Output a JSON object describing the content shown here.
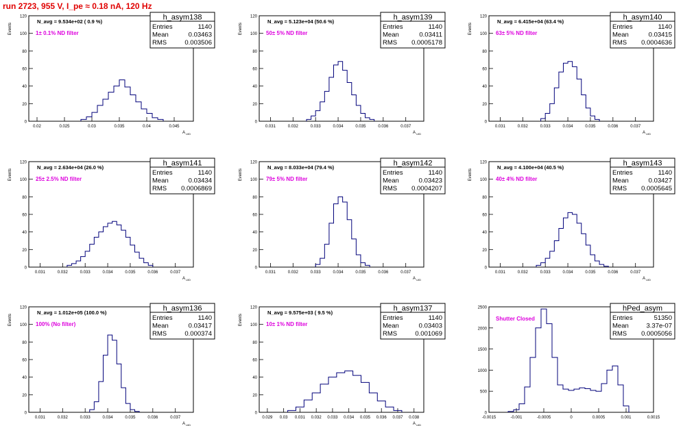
{
  "title": "run 2723,   955 V, I_pe ≈ 0.18 nA, 120 Hz",
  "colors": {
    "histogram": "#00007a",
    "annotation": "#dd00dd",
    "title": "#e00000"
  },
  "chart_data": [
    {
      "type": "histogram",
      "name": "h_asym138",
      "nlabel": "N_avg = 9.534e+02 ( 0.9 %)",
      "filter": "1± 0.1% ND filter",
      "stats": {
        "entries": "1140",
        "mean": "0.03463",
        "rms": "0.003506"
      },
      "xlim": [
        0.0185,
        0.0485
      ],
      "ylim": [
        0,
        120
      ],
      "xlabel": "A_UID",
      "ylabel": "Events",
      "xticks": [
        "0.02",
        "0.025",
        "0.03",
        "0.035",
        "0.04",
        "0.045"
      ],
      "xtick_values": [
        0.02,
        0.025,
        0.03,
        0.035,
        0.04,
        0.045
      ],
      "yticks": [
        "0",
        "20",
        "40",
        "60",
        "80",
        "100",
        "120"
      ],
      "x": [
        0.0285,
        0.0295,
        0.0305,
        0.0315,
        0.0325,
        0.0335,
        0.0345,
        0.0355,
        0.0365,
        0.0375,
        0.0385,
        0.0395,
        0.0405,
        0.0415,
        0.0425
      ],
      "values": [
        2,
        5,
        10,
        18,
        25,
        33,
        40,
        47,
        39,
        30,
        22,
        14,
        9,
        4,
        2
      ]
    },
    {
      "type": "histogram",
      "name": "h_asym139",
      "nlabel": "N_avg = 5.123e+04 (50.6 %)",
      "filter": "50± 5% ND filter",
      "stats": {
        "entries": "1140",
        "mean": "0.03411",
        "rms": "0.0005178"
      },
      "xlim": [
        0.0305,
        0.0378
      ],
      "ylim": [
        0,
        120
      ],
      "xlabel": "A_UID",
      "ylabel": "Events",
      "xticks": [
        "0.031",
        "0.032",
        "0.033",
        "0.034",
        "0.035",
        "0.036",
        "0.037"
      ],
      "xtick_values": [
        0.031,
        0.032,
        0.033,
        0.034,
        0.035,
        0.036,
        0.037
      ],
      "yticks": [
        "0",
        "20",
        "40",
        "60",
        "80",
        "100",
        "120"
      ],
      "x": [
        0.0327,
        0.0329,
        0.0331,
        0.0333,
        0.0335,
        0.0337,
        0.0339,
        0.0341,
        0.0343,
        0.0345,
        0.0347,
        0.0349,
        0.0351,
        0.0353,
        0.0355
      ],
      "values": [
        2,
        6,
        12,
        22,
        34,
        50,
        64,
        68,
        58,
        44,
        30,
        18,
        9,
        4,
        2
      ]
    },
    {
      "type": "histogram",
      "name": "h_asym140",
      "nlabel": "N_avg = 6.415e+04 (63.4 %)",
      "filter": "63± 5% ND filter",
      "stats": {
        "entries": "1140",
        "mean": "0.03415",
        "rms": "0.0004636"
      },
      "xlim": [
        0.0305,
        0.0378
      ],
      "ylim": [
        0,
        120
      ],
      "xlabel": "A_UID",
      "ylabel": "Events",
      "xticks": [
        "0.031",
        "0.032",
        "0.033",
        "0.034",
        "0.035",
        "0.036",
        "0.037"
      ],
      "xtick_values": [
        0.031,
        0.032,
        0.033,
        0.034,
        0.035,
        0.036,
        0.037
      ],
      "yticks": [
        "0",
        "20",
        "40",
        "60",
        "80",
        "100",
        "120"
      ],
      "x": [
        0.0329,
        0.0331,
        0.0333,
        0.0335,
        0.0337,
        0.0339,
        0.0341,
        0.0343,
        0.0345,
        0.0347,
        0.0349,
        0.0351,
        0.0353
      ],
      "values": [
        3,
        9,
        20,
        38,
        56,
        66,
        68,
        62,
        48,
        30,
        15,
        6,
        2
      ]
    },
    {
      "type": "histogram",
      "name": "h_asym141",
      "nlabel": "N_avg = 2.634e+04 (26.0 %)",
      "filter": "25± 2.5% ND filter",
      "stats": {
        "entries": "1140",
        "mean": "0.03434",
        "rms": "0.0006869"
      },
      "xlim": [
        0.0305,
        0.0378
      ],
      "ylim": [
        0,
        120
      ],
      "xlabel": "A_UID",
      "ylabel": "Events",
      "xticks": [
        "0.031",
        "0.032",
        "0.033",
        "0.034",
        "0.035",
        "0.036",
        "0.037"
      ],
      "xtick_values": [
        0.031,
        0.032,
        0.033,
        0.034,
        0.035,
        0.036,
        0.037
      ],
      "yticks": [
        "0",
        "20",
        "40",
        "60",
        "80",
        "100",
        "120"
      ],
      "x": [
        0.0323,
        0.0325,
        0.0327,
        0.0329,
        0.0331,
        0.0333,
        0.0335,
        0.0337,
        0.0339,
        0.0341,
        0.0343,
        0.0345,
        0.0347,
        0.0349,
        0.0351,
        0.0353,
        0.0355,
        0.0357,
        0.0359
      ],
      "values": [
        2,
        4,
        7,
        12,
        18,
        26,
        34,
        40,
        46,
        50,
        52,
        48,
        42,
        34,
        25,
        17,
        10,
        5,
        2
      ]
    },
    {
      "type": "histogram",
      "name": "h_asym142",
      "nlabel": "N_avg = 8.033e+04 (79.4 %)",
      "filter": "79± 5% ND filter",
      "stats": {
        "entries": "1140",
        "mean": "0.03423",
        "rms": "0.0004207"
      },
      "xlim": [
        0.0305,
        0.0378
      ],
      "ylim": [
        0,
        120
      ],
      "xlabel": "A_UID",
      "ylabel": "Events",
      "xticks": [
        "0.031",
        "0.032",
        "0.033",
        "0.034",
        "0.035",
        "0.036",
        "0.037"
      ],
      "xtick_values": [
        0.031,
        0.032,
        0.033,
        0.034,
        0.035,
        0.036,
        0.037
      ],
      "yticks": [
        "0",
        "20",
        "40",
        "60",
        "80",
        "100",
        "120"
      ],
      "x": [
        0.0331,
        0.0333,
        0.0335,
        0.0337,
        0.0339,
        0.0341,
        0.0343,
        0.0345,
        0.0347,
        0.0349,
        0.0351,
        0.0353
      ],
      "values": [
        3,
        10,
        26,
        50,
        72,
        80,
        74,
        54,
        32,
        14,
        5,
        2
      ]
    },
    {
      "type": "histogram",
      "name": "h_asym143",
      "nlabel": "N_avg = 4.100e+04 (40.5 %)",
      "filter": "40± 4% ND filter",
      "stats": {
        "entries": "1140",
        "mean": "0.03427",
        "rms": "0.0005645"
      },
      "xlim": [
        0.0305,
        0.0378
      ],
      "ylim": [
        0,
        120
      ],
      "xlabel": "A_UID",
      "ylabel": "Events",
      "xticks": [
        "0.031",
        "0.032",
        "0.033",
        "0.034",
        "0.035",
        "0.036",
        "0.037"
      ],
      "xtick_values": [
        0.031,
        0.032,
        0.033,
        0.034,
        0.035,
        0.036,
        0.037
      ],
      "yticks": [
        "0",
        "20",
        "40",
        "60",
        "80",
        "100",
        "120"
      ],
      "x": [
        0.0327,
        0.0329,
        0.0331,
        0.0333,
        0.0335,
        0.0337,
        0.0339,
        0.0341,
        0.0343,
        0.0345,
        0.0347,
        0.0349,
        0.0351,
        0.0353,
        0.0355,
        0.0357
      ],
      "values": [
        2,
        5,
        10,
        18,
        30,
        44,
        56,
        62,
        60,
        50,
        38,
        25,
        14,
        7,
        3,
        1
      ]
    },
    {
      "type": "histogram",
      "name": "h_asym136",
      "nlabel": "N_avg = 1.012e+05 (100.0 %)",
      "filter": "100% (No filter)",
      "stats": {
        "entries": "1140",
        "mean": "0.03417",
        "rms": "0.000374"
      },
      "xlim": [
        0.0305,
        0.0378
      ],
      "ylim": [
        0,
        120
      ],
      "xlabel": "A_UID",
      "ylabel": "Events",
      "xticks": [
        "0.031",
        "0.032",
        "0.033",
        "0.034",
        "0.035",
        "0.036",
        "0.037"
      ],
      "xtick_values": [
        0.031,
        0.032,
        0.033,
        0.034,
        0.035,
        0.036,
        0.037
      ],
      "yticks": [
        "0",
        "20",
        "40",
        "60",
        "80",
        "100",
        "120"
      ],
      "x": [
        0.0333,
        0.0335,
        0.0337,
        0.0339,
        0.0341,
        0.0343,
        0.0345,
        0.0347,
        0.0349,
        0.0351,
        0.0353
      ],
      "values": [
        3,
        12,
        35,
        65,
        88,
        82,
        55,
        28,
        10,
        3,
        1
      ]
    },
    {
      "type": "histogram",
      "name": "h_asym137",
      "nlabel": "N_avg = 9.575e+03 ( 9.5 %)",
      "filter": "10± 1% ND filter",
      "stats": {
        "entries": "1140",
        "mean": "0.03403",
        "rms": "0.001069"
      },
      "xlim": [
        0.0285,
        0.0386
      ],
      "ylim": [
        0,
        120
      ],
      "xlabel": "A_UID",
      "ylabel": "Events",
      "xticks": [
        "0.029",
        "0.03",
        "0.031",
        "0.032",
        "0.033",
        "0.034",
        "0.035",
        "0.036",
        "0.037",
        "0.038"
      ],
      "xtick_values": [
        0.029,
        0.03,
        0.031,
        0.032,
        0.033,
        0.034,
        0.035,
        0.036,
        0.037,
        0.038
      ],
      "yticks": [
        "0",
        "20",
        "40",
        "60",
        "80",
        "100",
        "120"
      ],
      "x": [
        0.0305,
        0.031,
        0.0315,
        0.032,
        0.0325,
        0.033,
        0.0335,
        0.034,
        0.0345,
        0.035,
        0.0355,
        0.036,
        0.0365,
        0.037
      ],
      "values": [
        2,
        6,
        14,
        22,
        32,
        40,
        45,
        47,
        42,
        34,
        22,
        13,
        6,
        2
      ]
    },
    {
      "type": "histogram",
      "name": "hPed_asym",
      "nlabel": "",
      "filter": "Shutter Closed",
      "stats": {
        "entries": "51350",
        "mean": "3.37e-07",
        "rms": "0.0005056"
      },
      "xlim": [
        -0.0015,
        0.0015
      ],
      "ylim": [
        0,
        2500
      ],
      "xlabel": "",
      "ylabel": "",
      "xticks": [
        "-0.0015",
        "-0.001",
        "-0.0005",
        "0",
        "0.0005",
        "0.001",
        "0.0015"
      ],
      "xtick_values": [
        -0.0015,
        -0.001,
        -0.0005,
        0,
        0.0005,
        0.001,
        0.0015
      ],
      "yticks": [
        "0",
        "500",
        "1000",
        "1500",
        "2000",
        "2500"
      ],
      "x": [
        -0.0011,
        -0.001,
        -0.0009,
        -0.0008,
        -0.0007,
        -0.0006,
        -0.0005,
        -0.0004,
        -0.0003,
        -0.0002,
        -0.0001,
        0,
        0.0001,
        0.0002,
        0.0003,
        0.0004,
        0.0005,
        0.0006,
        0.0007,
        0.0008,
        0.0009,
        0.001
      ],
      "values": [
        20,
        60,
        200,
        600,
        1300,
        2000,
        2450,
        2100,
        1300,
        650,
        550,
        520,
        550,
        580,
        560,
        520,
        500,
        680,
        1000,
        1100,
        650,
        150
      ]
    }
  ]
}
